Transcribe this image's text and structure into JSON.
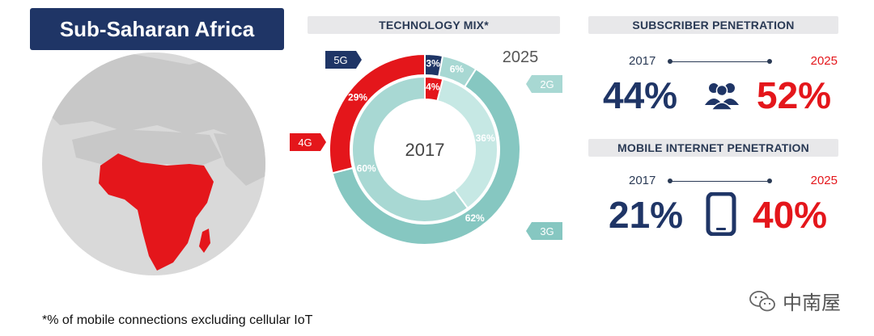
{
  "region_title": "Sub-Saharan Africa",
  "technology_mix": {
    "heading": "TECHNOLOGY MIX*"
  },
  "chart_data": {
    "type": "donut",
    "rings": [
      {
        "year": "2025",
        "series": [
          {
            "name": "5G",
            "value": 3,
            "label": "3%",
            "color": "#1f3566"
          },
          {
            "name": "2G",
            "value": 6,
            "label": "6%",
            "color": "#a8d8d3"
          },
          {
            "name": "3G",
            "value": 62,
            "label": "62%",
            "color": "#86c7c1"
          },
          {
            "name": "4G",
            "value": 29,
            "label": "29%",
            "color": "#e4161b"
          }
        ]
      },
      {
        "year": "2017",
        "series": [
          {
            "name": "4G",
            "value": 4,
            "label": "4%",
            "color": "#e4161b"
          },
          {
            "name": "2G",
            "value": 36,
            "label": "36%",
            "color": "#c6e8e4"
          },
          {
            "name": "3G",
            "value": 60,
            "label": "60%",
            "color": "#a8d8d3"
          }
        ]
      }
    ],
    "legend_tags": [
      {
        "name": "5G",
        "color": "#1f3566"
      },
      {
        "name": "2G",
        "color": "#a8d8d3"
      },
      {
        "name": "4G",
        "color": "#e4161b"
      },
      {
        "name": "3G",
        "color": "#86c7c1"
      }
    ]
  },
  "subscriber_penetration": {
    "heading": "SUBSCRIBER PENETRATION",
    "year_from": "2017",
    "year_to": "2025",
    "value_from": "44%",
    "value_to": "52%",
    "icon": "people-icon"
  },
  "mobile_internet_penetration": {
    "heading": "MOBILE INTERNET PENETRATION",
    "year_from": "2017",
    "year_to": "2025",
    "value_from": "21%",
    "value_to": "40%",
    "icon": "smartphone-icon"
  },
  "footnote": "*% of mobile connections excluding cellular IoT",
  "watermark": "中南屋",
  "colors": {
    "navy": "#1f3566",
    "red": "#e4161b",
    "teal": "#86c7c1",
    "light_teal": "#a8d8d3",
    "globe": "#e0e0e0"
  }
}
